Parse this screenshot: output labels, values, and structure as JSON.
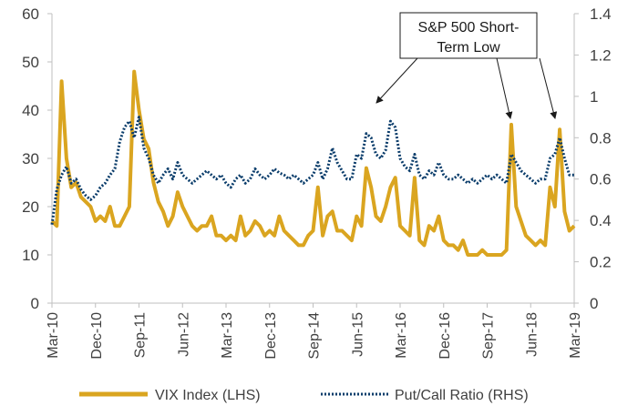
{
  "chart_data": {
    "type": "line",
    "title": "",
    "x_tick_labels": [
      "Mar-10",
      "Dec-10",
      "Sep-11",
      "Jun-12",
      "Mar-13",
      "Dec-13",
      "Sep-14",
      "Jun-15",
      "Mar-16",
      "Dec-16",
      "Sep-17",
      "Jun-18",
      "Mar-19"
    ],
    "x_range": [
      "2010-03",
      "2019-03"
    ],
    "y_left": {
      "label": "",
      "range": [
        0,
        60
      ],
      "ticks": [
        "0",
        "10",
        "20",
        "30",
        "40",
        "50",
        "60"
      ]
    },
    "y_right": {
      "label": "",
      "range": [
        0,
        1.4
      ],
      "ticks": [
        "0",
        "0.2",
        "0.4",
        "0.6",
        "0.8",
        "1",
        "1.2",
        "1.4"
      ]
    },
    "grid": false,
    "legend_position": "bottom",
    "annotation": {
      "lines": [
        "S&P 500 Short-",
        "Term Low"
      ]
    },
    "colors": {
      "vix": "#DAA520",
      "putcall": "#0B3D6B",
      "axis": "#bfbfbf",
      "text": "#404040"
    },
    "series": [
      {
        "name": "VIX Index (LHS)",
        "axis": "left",
        "style": "solid",
        "x": [
          "2010-03",
          "2010-04",
          "2010-05",
          "2010-06",
          "2010-07",
          "2010-08",
          "2010-09",
          "2010-10",
          "2010-11",
          "2010-12",
          "2011-01",
          "2011-02",
          "2011-03",
          "2011-04",
          "2011-05",
          "2011-06",
          "2011-07",
          "2011-08",
          "2011-09",
          "2011-10",
          "2011-11",
          "2011-12",
          "2012-01",
          "2012-02",
          "2012-03",
          "2012-04",
          "2012-05",
          "2012-06",
          "2012-07",
          "2012-08",
          "2012-09",
          "2012-10",
          "2012-11",
          "2012-12",
          "2013-01",
          "2013-02",
          "2013-03",
          "2013-04",
          "2013-05",
          "2013-06",
          "2013-07",
          "2013-08",
          "2013-09",
          "2013-10",
          "2013-11",
          "2013-12",
          "2014-01",
          "2014-02",
          "2014-03",
          "2014-04",
          "2014-05",
          "2014-06",
          "2014-07",
          "2014-08",
          "2014-09",
          "2014-10",
          "2014-11",
          "2014-12",
          "2015-01",
          "2015-02",
          "2015-03",
          "2015-04",
          "2015-05",
          "2015-06",
          "2015-07",
          "2015-08",
          "2015-09",
          "2015-10",
          "2015-11",
          "2015-12",
          "2016-01",
          "2016-02",
          "2016-03",
          "2016-04",
          "2016-05",
          "2016-06",
          "2016-07",
          "2016-08",
          "2016-09",
          "2016-10",
          "2016-11",
          "2016-12",
          "2017-01",
          "2017-02",
          "2017-03",
          "2017-04",
          "2017-05",
          "2017-06",
          "2017-07",
          "2017-08",
          "2017-09",
          "2017-10",
          "2017-11",
          "2017-12",
          "2018-01",
          "2018-02",
          "2018-03",
          "2018-04",
          "2018-05",
          "2018-06",
          "2018-07",
          "2018-08",
          "2018-09",
          "2018-10",
          "2018-11",
          "2018-12",
          "2019-01",
          "2019-02",
          "2019-03"
        ],
        "values": [
          17,
          16,
          46,
          30,
          24,
          25,
          22,
          21,
          20,
          17,
          18,
          17,
          20,
          16,
          16,
          18,
          20,
          48,
          40,
          34,
          32,
          25,
          21,
          19,
          16,
          18,
          23,
          20,
          18,
          16,
          15,
          16,
          16,
          18,
          14,
          14,
          13,
          14,
          13,
          18,
          14,
          15,
          17,
          16,
          14,
          15,
          14,
          18,
          15,
          14,
          13,
          12,
          12,
          14,
          15,
          24,
          14,
          18,
          19,
          15,
          15,
          14,
          13,
          18,
          16,
          28,
          24,
          18,
          17,
          20,
          24,
          26,
          16,
          15,
          14,
          26,
          13,
          12,
          16,
          15,
          18,
          13,
          12,
          12,
          11,
          13,
          10,
          10,
          10,
          11,
          10,
          10,
          10,
          10,
          11,
          37,
          20,
          17,
          14,
          13,
          12,
          13,
          12,
          24,
          20,
          36,
          19,
          15,
          16
        ]
      },
      {
        "name": "Put/Call Ratio (RHS)",
        "axis": "right",
        "style": "dotted",
        "x": [
          "2010-03",
          "2010-04",
          "2010-05",
          "2010-06",
          "2010-07",
          "2010-08",
          "2010-09",
          "2010-10",
          "2010-11",
          "2010-12",
          "2011-01",
          "2011-02",
          "2011-03",
          "2011-04",
          "2011-05",
          "2011-06",
          "2011-07",
          "2011-08",
          "2011-09",
          "2011-10",
          "2011-11",
          "2011-12",
          "2012-01",
          "2012-02",
          "2012-03",
          "2012-04",
          "2012-05",
          "2012-06",
          "2012-07",
          "2012-08",
          "2012-09",
          "2012-10",
          "2012-11",
          "2012-12",
          "2013-01",
          "2013-02",
          "2013-03",
          "2013-04",
          "2013-05",
          "2013-06",
          "2013-07",
          "2013-08",
          "2013-09",
          "2013-10",
          "2013-11",
          "2013-12",
          "2014-01",
          "2014-02",
          "2014-03",
          "2014-04",
          "2014-05",
          "2014-06",
          "2014-07",
          "2014-08",
          "2014-09",
          "2014-10",
          "2014-11",
          "2014-12",
          "2015-01",
          "2015-02",
          "2015-03",
          "2015-04",
          "2015-05",
          "2015-06",
          "2015-07",
          "2015-08",
          "2015-09",
          "2015-10",
          "2015-11",
          "2015-12",
          "2016-01",
          "2016-02",
          "2016-03",
          "2016-04",
          "2016-05",
          "2016-06",
          "2016-07",
          "2016-08",
          "2016-09",
          "2016-10",
          "2016-11",
          "2016-12",
          "2017-01",
          "2017-02",
          "2017-03",
          "2017-04",
          "2017-05",
          "2017-06",
          "2017-07",
          "2017-08",
          "2017-09",
          "2017-10",
          "2017-11",
          "2017-12",
          "2018-01",
          "2018-02",
          "2018-03",
          "2018-04",
          "2018-05",
          "2018-06",
          "2018-07",
          "2018-08",
          "2018-09",
          "2018-10",
          "2018-11",
          "2018-12",
          "2019-01",
          "2019-02",
          "2019-03"
        ],
        "values": [
          0.38,
          0.55,
          0.62,
          0.66,
          0.58,
          0.6,
          0.55,
          0.52,
          0.5,
          0.52,
          0.56,
          0.58,
          0.62,
          0.65,
          0.78,
          0.85,
          0.88,
          0.8,
          0.9,
          0.75,
          0.7,
          0.62,
          0.58,
          0.62,
          0.65,
          0.6,
          0.68,
          0.62,
          0.6,
          0.58,
          0.6,
          0.62,
          0.64,
          0.62,
          0.6,
          0.62,
          0.58,
          0.56,
          0.6,
          0.62,
          0.58,
          0.6,
          0.65,
          0.62,
          0.6,
          0.62,
          0.65,
          0.63,
          0.62,
          0.6,
          0.62,
          0.6,
          0.58,
          0.6,
          0.62,
          0.68,
          0.6,
          0.65,
          0.75,
          0.68,
          0.64,
          0.6,
          0.6,
          0.72,
          0.7,
          0.82,
          0.8,
          0.72,
          0.7,
          0.74,
          0.88,
          0.85,
          0.7,
          0.66,
          0.64,
          0.72,
          0.62,
          0.6,
          0.64,
          0.62,
          0.68,
          0.62,
          0.6,
          0.6,
          0.62,
          0.6,
          0.58,
          0.6,
          0.58,
          0.6,
          0.62,
          0.6,
          0.62,
          0.6,
          0.58,
          0.72,
          0.68,
          0.64,
          0.62,
          0.6,
          0.58,
          0.6,
          0.6,
          0.7,
          0.72,
          0.8,
          0.7,
          0.62,
          0.62
        ]
      }
    ]
  }
}
